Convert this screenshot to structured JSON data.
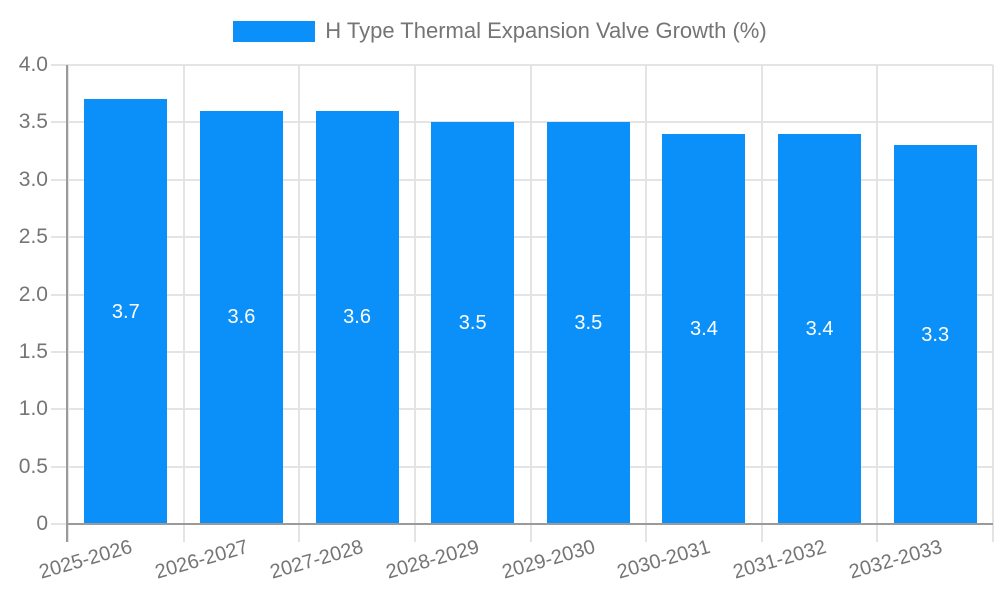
{
  "chart_data": {
    "type": "bar",
    "legend": {
      "label": "H Type Thermal Expansion Valve Growth (%)",
      "position": "top"
    },
    "categories": [
      "2025-2026",
      "2026-2027",
      "2027-2028",
      "2028-2029",
      "2029-2030",
      "2030-2031",
      "2031-2032",
      "2032-2033"
    ],
    "values": [
      3.7,
      3.6,
      3.6,
      3.5,
      3.5,
      3.4,
      3.4,
      3.3
    ],
    "bar_labels": [
      "3.7",
      "3.6",
      "3.6",
      "3.5",
      "3.5",
      "3.4",
      "3.4",
      "3.3"
    ],
    "xlabel": "",
    "ylabel": "",
    "ylim": [
      0,
      4
    ],
    "ytick_labels": [
      "0",
      "0.5",
      "1.0",
      "1.5",
      "2.0",
      "2.5",
      "3.0",
      "3.5",
      "4.0"
    ],
    "grid": true,
    "colors": {
      "bar": "#0a90f8",
      "bar_label_text": "#ffffff",
      "axis_text": "#757575",
      "grid_line": "#e4e4e4",
      "axis_line": "#9a9a9a",
      "background": "#ffffff"
    }
  }
}
